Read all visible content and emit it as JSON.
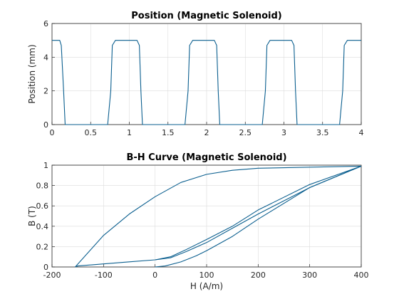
{
  "chart_data": [
    {
      "type": "line",
      "title": "Position (Magnetic Solenoid)",
      "xlabel": "",
      "ylabel": "Position (mm)",
      "xlim": [
        0,
        4
      ],
      "ylim": [
        0,
        6
      ],
      "xticks": [
        "0",
        "0.5",
        "1",
        "1.5",
        "2",
        "2.5",
        "3",
        "3.5",
        "4"
      ],
      "yticks": [
        "0",
        "2",
        "4",
        "6"
      ],
      "grid": true,
      "color": "#0b5f8f",
      "series": [
        {
          "x": [
            0,
            0.1,
            0.12,
            0.15,
            0.17,
            0.72,
            0.76,
            0.78,
            0.82,
            1.1,
            1.13,
            1.15,
            1.17,
            1.72,
            1.76,
            1.78,
            1.82,
            2.1,
            2.13,
            2.15,
            2.17,
            2.72,
            2.76,
            2.78,
            2.82,
            3.1,
            3.13,
            3.15,
            3.17,
            3.72,
            3.76,
            3.78,
            3.82,
            4.0
          ],
          "y": [
            5.0,
            5.0,
            4.7,
            2.0,
            0.0,
            0.0,
            2.0,
            4.7,
            5.0,
            5.0,
            4.7,
            2.0,
            0.0,
            0.0,
            2.0,
            4.7,
            5.0,
            5.0,
            4.7,
            2.0,
            0.0,
            0.0,
            2.0,
            4.7,
            5.0,
            5.0,
            4.7,
            2.0,
            0.0,
            0.0,
            2.0,
            4.7,
            5.0,
            5.0
          ]
        }
      ]
    },
    {
      "type": "line",
      "title": "B-H Curve (Magnetic Solenoid)",
      "xlabel": "H (A/m)",
      "ylabel": "B (T)",
      "xlim": [
        -200,
        400
      ],
      "ylim": [
        0,
        1
      ],
      "xticks": [
        "-200",
        "-100",
        "0",
        "100",
        "200",
        "300",
        "400"
      ],
      "yticks": [
        "0",
        "0.2",
        "0.4",
        "0.6",
        "0.8",
        "1"
      ],
      "grid": true,
      "color": "#0b5f8f",
      "series": [
        {
          "x": [
            400,
            300,
            200,
            150,
            100,
            60,
            30,
            0,
            -50,
            -100,
            -150,
            -155
          ],
          "y": [
            0.99,
            0.81,
            0.56,
            0.4,
            0.27,
            0.17,
            0.1,
            0.07,
            0.05,
            0.03,
            0.01,
            0.0
          ]
        },
        {
          "x": [
            -155,
            -100,
            -50,
            0,
            50,
            100,
            150,
            200,
            300,
            400
          ],
          "y": [
            0.0,
            0.31,
            0.52,
            0.69,
            0.83,
            0.91,
            0.95,
            0.97,
            0.98,
            0.99
          ]
        },
        {
          "x": [
            0,
            20,
            50,
            80,
            100,
            150,
            200,
            300,
            400
          ],
          "y": [
            0.0,
            0.01,
            0.05,
            0.11,
            0.16,
            0.3,
            0.47,
            0.78,
            0.99
          ]
        },
        {
          "x": [
            400,
            300,
            200,
            150,
            100,
            60,
            30,
            0
          ],
          "y": [
            0.99,
            0.78,
            0.52,
            0.38,
            0.24,
            0.15,
            0.09,
            0.07
          ]
        }
      ]
    }
  ]
}
